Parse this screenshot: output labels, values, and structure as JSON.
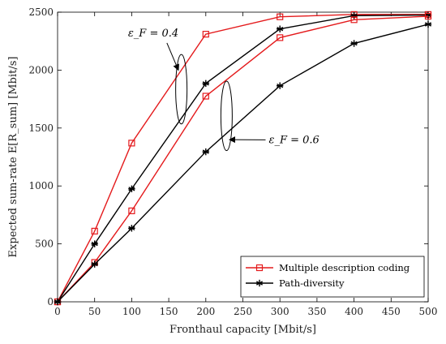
{
  "chart_data": {
    "type": "line",
    "title": "",
    "xlabel": "Fronthaul capacity [Mbit/s]",
    "ylabel": "Expected sum-rate E[R_sum] [Mbit/s]",
    "xlim": [
      0,
      500
    ],
    "ylim": [
      0,
      2500
    ],
    "xticks": [
      0,
      50,
      100,
      150,
      200,
      250,
      300,
      350,
      400,
      450,
      500
    ],
    "yticks": [
      0,
      500,
      1000,
      1500,
      2000,
      2500
    ],
    "grid": false,
    "legend_position": "bottom-right",
    "x": [
      0,
      50,
      100,
      200,
      300,
      400,
      500
    ],
    "series": [
      {
        "name": "Multiple description coding",
        "group": "0.4",
        "color": "#e41a1c",
        "marker": "square",
        "values": [
          0,
          610,
          1370,
          2310,
          2460,
          2480,
          2480
        ]
      },
      {
        "name": "Path-diversity",
        "group": "0.4",
        "color": "#000000",
        "marker": "asterisk",
        "values": [
          0,
          500,
          975,
          1885,
          2355,
          2470,
          2475
        ]
      },
      {
        "name": "Multiple description coding",
        "group": "0.6",
        "color": "#e41a1c",
        "marker": "square",
        "values": [
          0,
          340,
          785,
          1775,
          2280,
          2435,
          2465
        ]
      },
      {
        "name": "Path-diversity",
        "group": "0.6",
        "color": "#000000",
        "marker": "asterisk",
        "values": [
          0,
          325,
          635,
          1295,
          1865,
          2230,
          2395
        ]
      }
    ],
    "annotations": [
      {
        "label": "ε_F = 0.4",
        "text_pos": [
          95,
          2290
        ],
        "arrow_to": [
          163,
          2000
        ],
        "ellipse_center": [
          167,
          1835
        ],
        "ellipse_rx": 7,
        "ellipse_ry": 300
      },
      {
        "label": "ε_F = 0.6",
        "text_pos": [
          285,
          1370
        ],
        "arrow_to": [
          232,
          1400
        ],
        "ellipse_center": [
          228,
          1605
        ],
        "ellipse_rx": 7,
        "ellipse_ry": 300
      }
    ],
    "legend": [
      {
        "label": "Multiple description coding",
        "color": "#e41a1c",
        "marker": "square"
      },
      {
        "label": "Path-diversity",
        "color": "#000000",
        "marker": "asterisk"
      }
    ]
  }
}
